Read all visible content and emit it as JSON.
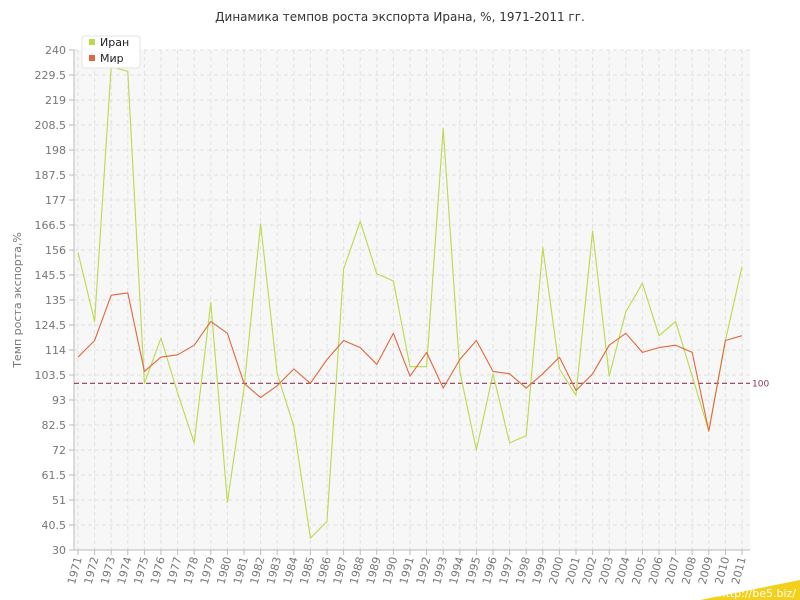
{
  "chart_data": {
    "type": "line",
    "title": "Динамика темпов роста экспорта Ирана, %, 1971-2011 гг.",
    "xlabel": "",
    "ylabel": "Темп роста экспорта,%",
    "ylim": [
      30,
      240
    ],
    "yticks": [
      "30",
      "40.5",
      "51",
      "61.5",
      "72",
      "82.5",
      "93",
      "103.5",
      "114",
      "124.5",
      "135",
      "145.5",
      "156",
      "166.5",
      "177",
      "187.5",
      "198",
      "208.5",
      "219",
      "229.5",
      "240"
    ],
    "categories": [
      "1971",
      "1972",
      "1973",
      "1974",
      "1975",
      "1976",
      "1977",
      "1978",
      "1979",
      "1980",
      "1981",
      "1982",
      "1983",
      "1984",
      "1985",
      "1986",
      "1987",
      "1988",
      "1989",
      "1990",
      "1991",
      "1992",
      "1993",
      "1994",
      "1995",
      "1996",
      "1997",
      "1998",
      "1999",
      "2000",
      "2001",
      "2002",
      "2003",
      "2004",
      "2005",
      "2006",
      "2007",
      "2008",
      "2009",
      "2010",
      "2011"
    ],
    "series": [
      {
        "name": "Иран",
        "color": "#bada4a",
        "values": [
          155,
          126,
          233,
          231,
          100,
          119,
          96,
          75,
          134,
          50,
          98,
          167,
          104,
          82,
          35,
          42,
          148,
          168,
          146,
          143,
          107,
          107,
          207,
          105,
          72,
          104,
          75,
          78,
          157,
          106,
          95,
          164,
          103,
          130,
          142,
          120,
          126,
          103,
          80,
          118,
          149
        ]
      },
      {
        "name": "Мир",
        "color": "#e0683c",
        "values": [
          111,
          118,
          137,
          138,
          105,
          111,
          112,
          116,
          126,
          121,
          100,
          94,
          99,
          106,
          100,
          110,
          118,
          115,
          108,
          121,
          103,
          113,
          98,
          110,
          118,
          105,
          104,
          98,
          104,
          111,
          97,
          104,
          116,
          121,
          113,
          115,
          116,
          113,
          80,
          118,
          120
        ]
      }
    ],
    "reference_line": {
      "value": 100,
      "label": "100",
      "color": "#8a3a52"
    },
    "grid": true,
    "legend": "top-left"
  },
  "watermark": "http://be5.biz/"
}
